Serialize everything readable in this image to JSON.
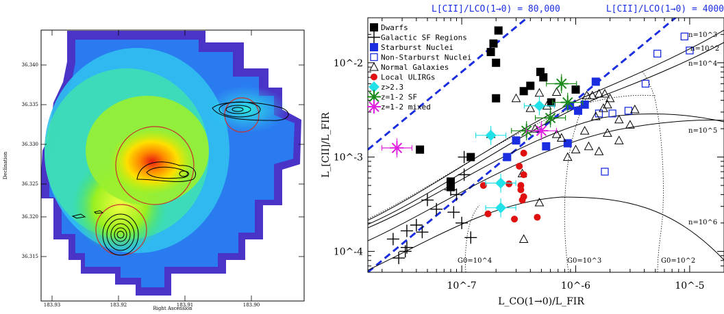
{
  "map_panel": {
    "xlabel": "Right Ascension",
    "ylabel": "Declination",
    "x_ticks": [
      "183.93",
      "183.92",
      "183.91",
      "183.90"
    ],
    "y_ticks": [
      "36.340",
      "36.335",
      "36.330",
      "36.325",
      "36.320",
      "36.315"
    ],
    "colors": {
      "frame": "#000000",
      "circles": "#c8302c",
      "contours": "#000000"
    }
  },
  "chart_data": {
    "type": "scatter",
    "title": "",
    "xlabel": "L_CO(1→0)/L_FIR",
    "ylabel": "L_[CII]/L_FIR",
    "xscale": "log",
    "yscale": "log",
    "xlim": [
      1.5e-08,
      2e-05
    ],
    "ylim": [
      6e-05,
      0.03
    ],
    "x_tick_labels": [
      "10^-7",
      "10^-6",
      "10^-5"
    ],
    "y_tick_labels": [
      "10^-4",
      "10^-3",
      "10^-2"
    ],
    "legend_position": "top-left",
    "ratio_lines": [
      {
        "label": "L[CII]/LCO(1→0) = 80,000",
        "ratio": 80000,
        "color": "#1a2ee0"
      },
      {
        "label": "L[CII]/LCO(1→0) = 4000",
        "ratio": 4000,
        "color": "#1a2ee0"
      }
    ],
    "density_labels": [
      "n=10^3",
      "n=10^2",
      "n=10^4",
      "n=10^5",
      "n=10^6"
    ],
    "g0_labels": [
      "G0=10^4",
      "G0=10^3",
      "G0=10^2"
    ],
    "series": [
      {
        "name": "Dwarfs",
        "marker": "filled-square",
        "color": "#000000",
        "points": [
          [
            2.1e-07,
            0.022
          ],
          [
            1.9e-07,
            0.016
          ],
          [
            1.8e-07,
            0.013
          ],
          [
            2e-07,
            0.01
          ],
          [
            4.9e-07,
            0.008
          ],
          [
            5.2e-07,
            0.007
          ],
          [
            4e-07,
            0.0057
          ],
          [
            3.5e-07,
            0.005
          ],
          [
            1e-06,
            0.0052
          ],
          [
            6.1e-07,
            0.0038
          ],
          [
            2e-07,
            0.0042
          ],
          [
            4.3e-08,
            0.0012
          ],
          [
            1.2e-07,
            0.001
          ],
          [
            8e-08,
            0.00055
          ],
          [
            8e-08,
            0.00048
          ]
        ]
      },
      {
        "name": "Galactic SF Regions",
        "marker": "plus",
        "color": "#000000",
        "points": [
          [
            1.05e-07,
            0.001
          ],
          [
            1.05e-07,
            0.00065
          ],
          [
            8e-08,
            0.00045
          ],
          [
            9e-08,
            0.0004
          ],
          [
            5e-08,
            0.00035
          ],
          [
            6e-08,
            0.00028
          ],
          [
            8.5e-08,
            0.00026
          ],
          [
            4e-08,
            0.00019
          ],
          [
            3.3e-08,
            0.000165
          ],
          [
            1e-07,
            0.0002
          ],
          [
            2.5e-08,
            0.000135
          ],
          [
            4.5e-08,
            0.00016
          ],
          [
            1.2e-07,
            0.00014
          ],
          [
            3.3e-08,
            0.00011
          ],
          [
            3.2e-08,
            0.0001
          ],
          [
            2.8e-08,
            8.5e-05
          ]
        ]
      },
      {
        "name": "Starburst Nuclei",
        "marker": "filled-square",
        "color": "#1a2ee0",
        "points": [
          [
            8.9e-07,
            0.0035
          ],
          [
            1.05e-06,
            0.0031
          ],
          [
            1.2e-06,
            0.0036
          ],
          [
            1.5e-06,
            0.0063
          ],
          [
            8.5e-07,
            0.0014
          ],
          [
            5.5e-07,
            0.0013
          ],
          [
            3e-07,
            0.0015
          ],
          [
            2.5e-07,
            0.001
          ]
        ]
      },
      {
        "name": "Non-Starburst Nuclei",
        "marker": "open-square",
        "color": "#1a2ee0",
        "points": [
          [
            9e-06,
            0.019
          ],
          [
            5.2e-06,
            0.0125
          ],
          [
            4.1e-06,
            0.006
          ],
          [
            1.6e-06,
            0.0029
          ],
          [
            2.1e-06,
            0.0029
          ],
          [
            2.9e-06,
            0.0031
          ],
          [
            1.8e-06,
            0.0007
          ],
          [
            1e-05,
            0.0135
          ]
        ]
      },
      {
        "name": "Normal Galaxies",
        "marker": "open-triangle",
        "color": "#000000",
        "points": [
          [
            3e-07,
            0.0042
          ],
          [
            4e-07,
            0.0033
          ],
          [
            4.8e-07,
            0.0048
          ],
          [
            6.8e-07,
            0.0049
          ],
          [
            1.25e-06,
            0.0045
          ],
          [
            1.4e-06,
            0.0045
          ],
          [
            1.6e-06,
            0.0047
          ],
          [
            1.8e-06,
            0.0047
          ],
          [
            2e-06,
            0.0042
          ],
          [
            1.9e-06,
            0.0036
          ],
          [
            1.75e-06,
            0.0033
          ],
          [
            3.3e-06,
            0.0032
          ],
          [
            1.5e-06,
            0.0027
          ],
          [
            2.4e-06,
            0.0025
          ],
          [
            3e-06,
            0.0022
          ],
          [
            1.2e-06,
            0.0019
          ],
          [
            1.9e-06,
            0.0018
          ],
          [
            2.4e-06,
            0.0015
          ],
          [
            1.3e-06,
            0.0013
          ],
          [
            1.6e-06,
            0.00115
          ],
          [
            8.5e-07,
            0.001
          ],
          [
            1e-06,
            0.0012
          ],
          [
            7.5e-07,
            0.0016
          ],
          [
            6.8e-07,
            0.00175
          ],
          [
            5.6e-07,
            0.0035
          ],
          [
            4.4e-07,
            0.002
          ],
          [
            3.4e-07,
            0.00067
          ],
          [
            4.8e-07,
            0.00033
          ],
          [
            1.8e-07,
            0.00175
          ],
          [
            3.5e-07,
            0.000135
          ]
        ]
      },
      {
        "name": "Local ULIRGs",
        "marker": "filled-circle",
        "color": "#e01010",
        "points": [
          [
            3.5e-07,
            0.0011
          ],
          [
            3.2e-07,
            0.0008
          ],
          [
            1.55e-07,
            0.0005
          ],
          [
            2.6e-07,
            0.00052
          ],
          [
            3.5e-07,
            0.00065
          ],
          [
            3.3e-07,
            0.0005
          ],
          [
            3.3e-07,
            0.00045
          ],
          [
            3.5e-07,
            0.00038
          ],
          [
            3.4e-07,
            0.00035
          ],
          [
            1.7e-07,
            0.00025
          ],
          [
            2.9e-07,
            0.00022
          ],
          [
            4.6e-07,
            0.00023
          ]
        ]
      },
      {
        "name": "z>2.3",
        "marker": "filled-diamond",
        "color": "#22e0e8",
        "points": [
          [
            1.8e-07,
            0.0017
          ],
          [
            4.8e-07,
            0.0035
          ],
          [
            2.2e-07,
            0.00053
          ],
          [
            2.2e-07,
            0.00029
          ]
        ]
      },
      {
        "name": "z=1-2 SF",
        "marker": "asterisk",
        "color": "#1a8a1a",
        "points": [
          [
            7.5e-07,
            0.006
          ],
          [
            8.5e-07,
            0.0038
          ],
          [
            3.7e-07,
            0.0019
          ],
          [
            6e-07,
            0.0026
          ]
        ]
      },
      {
        "name": "z=1-2 mixed",
        "marker": "asterisk",
        "color": "#e020e0",
        "points": [
          [
            2.7e-08,
            0.00125
          ],
          [
            5e-07,
            0.0019
          ]
        ]
      }
    ]
  }
}
